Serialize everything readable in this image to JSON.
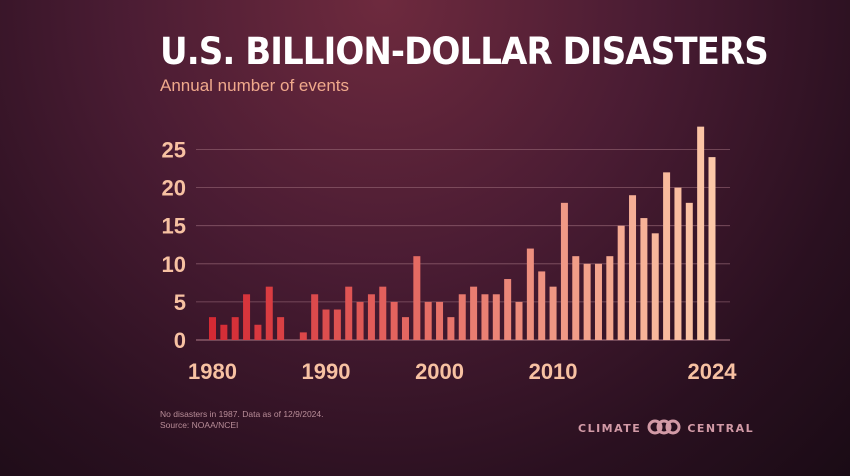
{
  "chart_data": {
    "type": "bar",
    "title": "U.S. BILLION-DOLLAR DISASTERS",
    "subtitle": "Annual number of events",
    "x": [
      1980,
      1981,
      1982,
      1983,
      1984,
      1985,
      1986,
      1987,
      1988,
      1989,
      1990,
      1991,
      1992,
      1993,
      1994,
      1995,
      1996,
      1997,
      1998,
      1999,
      2000,
      2001,
      2002,
      2003,
      2004,
      2005,
      2006,
      2007,
      2008,
      2009,
      2010,
      2011,
      2012,
      2013,
      2014,
      2015,
      2016,
      2017,
      2018,
      2019,
      2020,
      2021,
      2022,
      2023,
      2024
    ],
    "values": [
      3,
      2,
      3,
      6,
      2,
      7,
      3,
      0,
      1,
      6,
      4,
      4,
      7,
      5,
      6,
      7,
      5,
      3,
      11,
      5,
      5,
      3,
      6,
      7,
      6,
      6,
      8,
      5,
      12,
      9,
      7,
      18,
      11,
      10,
      10,
      11,
      15,
      19,
      16,
      14,
      22,
      20,
      18,
      28,
      24
    ],
    "x_tick_labels": [
      "1980",
      "1990",
      "2000",
      "2010",
      "2024"
    ],
    "y_ticks": [
      0,
      5,
      10,
      15,
      20,
      25
    ],
    "ylim": [
      0,
      28
    ],
    "xlabel": "",
    "ylabel": "",
    "grid": true,
    "colors": {
      "start": "#d42a34",
      "end": "#fcc8a8",
      "grid": "#a0707e",
      "tick": "#f7c1a2"
    }
  },
  "footnote": "No disasters in 1987. Data as of 12/9/2024.",
  "source": "Source: NOAA/NCEI",
  "brand": {
    "left": "CLIMATE",
    "right": "CENTRAL",
    "icon": "climate-central-logo-icon"
  }
}
